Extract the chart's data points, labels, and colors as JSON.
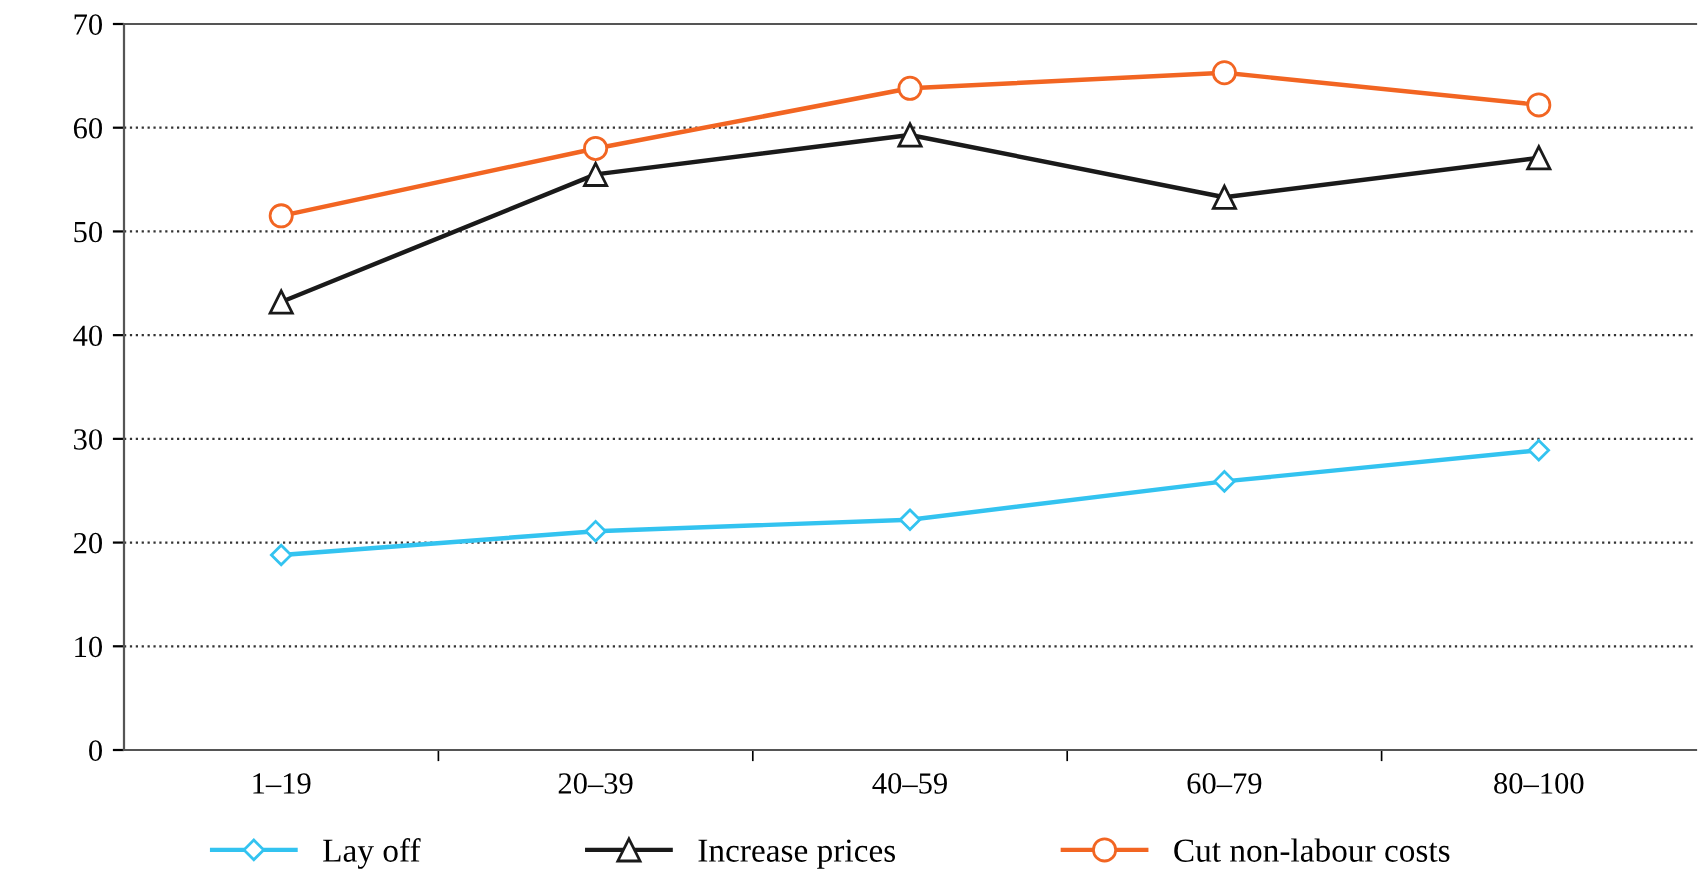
{
  "chart_data": {
    "type": "line",
    "categories": [
      "1–19",
      "20–39",
      "40–59",
      "60–79",
      "80–100"
    ],
    "series": [
      {
        "name": "Lay off",
        "color": "#33c3f0",
        "marker": "diamond",
        "values": [
          18.8,
          21.1,
          22.2,
          25.9,
          28.9
        ]
      },
      {
        "name": "Increase prices",
        "color": "#1a1a1a",
        "marker": "triangle",
        "values": [
          43.2,
          55.5,
          59.3,
          53.3,
          57.1
        ]
      },
      {
        "name": "Cut non-labour costs",
        "color": "#f26522",
        "marker": "circle",
        "values": [
          51.5,
          58.0,
          63.8,
          65.3,
          62.2
        ]
      }
    ],
    "ylim": [
      0,
      70
    ],
    "yticks": [
      0,
      10,
      20,
      30,
      40,
      50,
      60,
      70
    ],
    "grid": "y",
    "legend": "bottom",
    "line_style": "solid"
  }
}
